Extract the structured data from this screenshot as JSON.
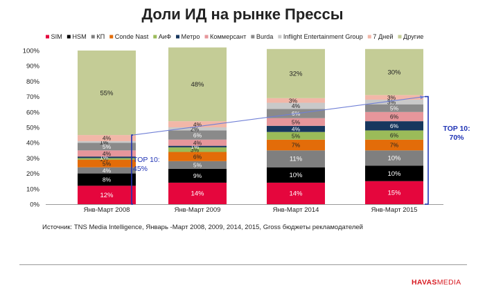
{
  "slide": {
    "title": "Доли ИД на рынке Прессы",
    "source": "Источник: TNS Media Intelligence, Январь -Март 2008, 2009, 2014, 2015, Gross бюджеты рекламодателей",
    "logo_part1": "HAVAS",
    "logo_part2": "MEDIA",
    "top10_left_label": "TOP 10:",
    "top10_left_value": "45%",
    "top10_right_label": "TOP 10:",
    "top10_right_value": "70%",
    "colors": {
      "title": "#222222",
      "bracket": "#1f33b5",
      "trend_line": "#6f7fd6",
      "logo": "#d71920"
    }
  },
  "chart_data": {
    "type": "bar",
    "stacked": true,
    "categories": [
      "Янв-Март 2008",
      "Янв-Март 2009",
      "Янв-Март 2014",
      "Янв-Март 2015"
    ],
    "series": [
      {
        "name": "SIM",
        "color": "#e5063d",
        "values": [
          12,
          14,
          14,
          15
        ],
        "labels": [
          "12%",
          "14%",
          "14%",
          "15%"
        ],
        "label_color": "#ffffff"
      },
      {
        "name": "HSM",
        "color": "#000000",
        "values": [
          8,
          9,
          10,
          10
        ],
        "labels": [
          "8%",
          "9%",
          "10%",
          "10%"
        ],
        "label_color": "#ffffff"
      },
      {
        "name": "КП",
        "color": "#7f7f7f",
        "values": [
          4,
          5,
          11,
          10
        ],
        "labels": [
          "4%",
          "5%",
          "11%",
          "10%"
        ],
        "label_color": "#ffffff"
      },
      {
        "name": "Conde Nast",
        "color": "#e36c09",
        "values": [
          5,
          6,
          7,
          7
        ],
        "labels": [
          "5%",
          "6%",
          "7%",
          "7%"
        ],
        "label_color": "#222222"
      },
      {
        "name": "АиФ",
        "color": "#9bbb59",
        "values": [
          1,
          3,
          5,
          6
        ],
        "labels": [
          "1%",
          "3%",
          "5%",
          "6%"
        ],
        "label_color": "#222222"
      },
      {
        "name": "Метро",
        "color": "#17375e",
        "values": [
          1,
          1,
          4,
          6
        ],
        "labels": [
          "1%",
          "1%",
          "4%",
          "6%"
        ],
        "label_color": "#ffffff"
      },
      {
        "name": "Коммерсант",
        "color": "#e6969b",
        "values": [
          4,
          4,
          5,
          6
        ],
        "labels": [
          "4%",
          "4%",
          "5%",
          "6%"
        ],
        "label_color": "#222222"
      },
      {
        "name": "Burda",
        "color": "#8a8a8a",
        "values": [
          5,
          6,
          6,
          5
        ],
        "labels": [
          "5%",
          "6%",
          "6%",
          "5%"
        ],
        "label_color": "#ffffff"
      },
      {
        "name": "Inflight Entertainment Group",
        "color": "#c9c9c9",
        "values": [
          1,
          2,
          4,
          3
        ],
        "labels": [
          "1%",
          "2%",
          "4%",
          "3%"
        ],
        "label_color": "#222222"
      },
      {
        "name": "7 Дней",
        "color": "#f2b7a8",
        "values": [
          4,
          4,
          3,
          3
        ],
        "labels": [
          "4%",
          "4%",
          "3%",
          "3%"
        ],
        "label_color": "#222222"
      },
      {
        "name": "Другие",
        "color": "#c4cc96",
        "values": [
          55,
          48,
          32,
          30
        ],
        "labels": [
          "55%",
          "48%",
          "32%",
          "30%"
        ],
        "label_color": "#222222"
      }
    ],
    "y_ticks": [
      "0%",
      "10%",
      "20%",
      "30%",
      "40%",
      "50%",
      "60%",
      "70%",
      "80%",
      "90%",
      "100%"
    ],
    "ylim": [
      0,
      100
    ],
    "grid": false,
    "legend_position": "top"
  }
}
